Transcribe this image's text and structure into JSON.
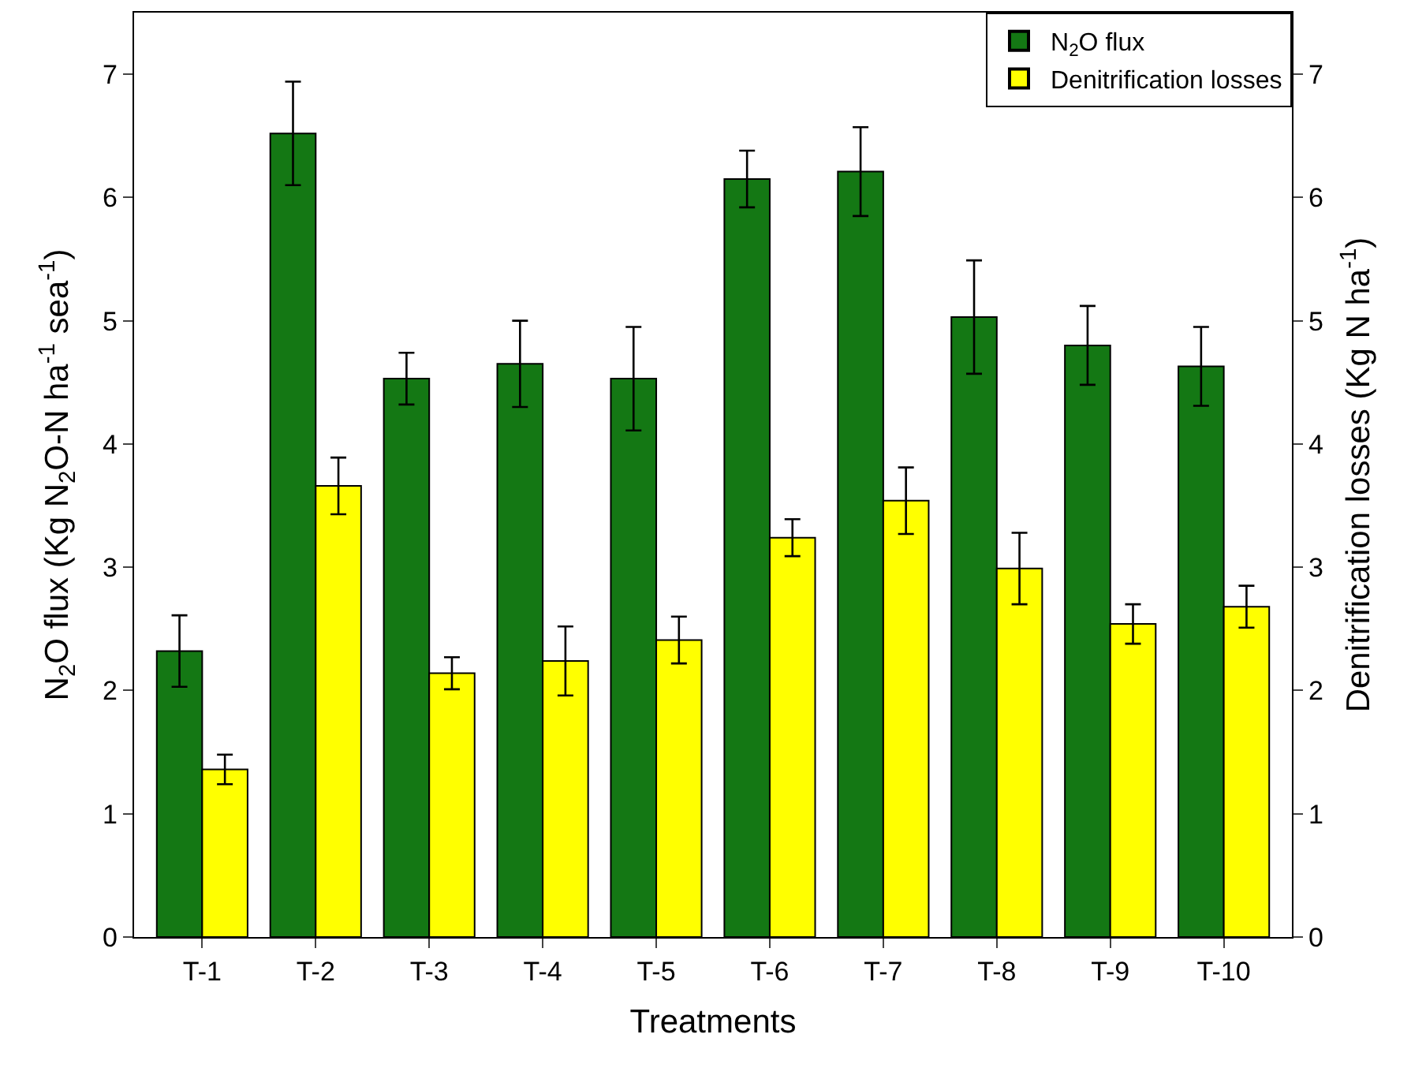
{
  "chart_data": {
    "type": "bar",
    "xlabel": "Treatments",
    "ylabel": "N$_{2}$O flux (Kg N$_{2}$O-N ha$^{-1}$ sea$^{-1}$)",
    "y2label": "Denitrification losses (Kg N ha$^{-1}$)",
    "categories": [
      "T-1",
      "T-2",
      "T-3",
      "T-4",
      "T-5",
      "T-6",
      "T-7",
      "T-8",
      "T-9",
      "T-10"
    ],
    "series": [
      {
        "name": "N$_{2}$O flux",
        "color": "#147814",
        "values": [
          2.32,
          6.52,
          4.53,
          4.65,
          4.53,
          6.15,
          6.21,
          5.03,
          4.8,
          4.63
        ],
        "errors": [
          0.29,
          0.42,
          0.21,
          0.35,
          0.42,
          0.23,
          0.36,
          0.46,
          0.32,
          0.32
        ]
      },
      {
        "name": "Denitrification losses",
        "color": "#ffff00",
        "axis": "y2",
        "values": [
          1.36,
          3.66,
          2.14,
          2.24,
          2.41,
          3.24,
          3.54,
          2.99,
          2.54,
          2.68
        ],
        "errors": [
          0.12,
          0.23,
          0.13,
          0.28,
          0.19,
          0.15,
          0.27,
          0.29,
          0.16,
          0.17
        ]
      }
    ],
    "ylim": [
      0,
      7.5
    ],
    "yticks": [
      0,
      1,
      2,
      3,
      4,
      5,
      6,
      7
    ],
    "y2lim": [
      0,
      7.5
    ],
    "y2ticks": [
      0,
      1,
      2,
      3,
      4,
      5,
      6,
      7
    ],
    "legend": "top right"
  }
}
